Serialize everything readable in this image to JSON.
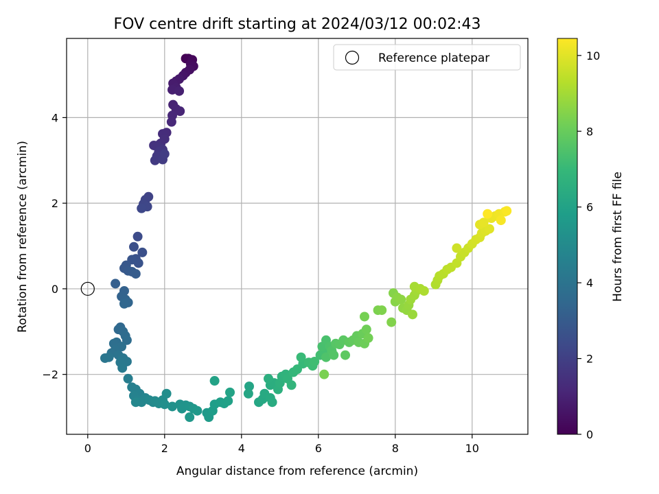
{
  "chart_data": {
    "type": "scatter",
    "title": "FOV centre drift starting at 2024/03/12 00:02:43",
    "xlabel": "Angular distance from reference (arcmin)",
    "ylabel": "Rotation from reference (arcmin)",
    "xlim": [
      -0.55,
      11.45
    ],
    "ylim": [
      -3.4,
      5.85
    ],
    "xticks": [
      0,
      2,
      4,
      6,
      8,
      10
    ],
    "yticks": [
      -2,
      0,
      2,
      4
    ],
    "grid": true,
    "legend": {
      "placement": "top-right",
      "entries": [
        "Reference platepar"
      ]
    },
    "reference_point": {
      "x": 0,
      "y": 0,
      "label": "Reference platepar"
    },
    "colorbar": {
      "label": "Hours from first FF file",
      "colormap": "viridis",
      "range": [
        0,
        10.45
      ],
      "ticks": [
        0,
        2,
        4,
        6,
        8,
        10
      ]
    },
    "points": [
      [
        2.55,
        5.38,
        0.0
      ],
      [
        2.62,
        5.38,
        0.1
      ],
      [
        2.72,
        5.35,
        0.2
      ],
      [
        2.68,
        5.25,
        0.3
      ],
      [
        2.75,
        5.2,
        0.35
      ],
      [
        2.65,
        5.12,
        0.45
      ],
      [
        2.55,
        5.05,
        0.5
      ],
      [
        2.48,
        4.98,
        0.6
      ],
      [
        2.38,
        4.9,
        0.7
      ],
      [
        2.3,
        4.85,
        0.75
      ],
      [
        2.22,
        4.8,
        0.8
      ],
      [
        2.3,
        4.7,
        0.85
      ],
      [
        2.2,
        4.65,
        0.9
      ],
      [
        2.38,
        4.62,
        0.95
      ],
      [
        2.22,
        4.3,
        1.0
      ],
      [
        2.3,
        4.2,
        1.05
      ],
      [
        2.4,
        4.15,
        1.1
      ],
      [
        2.2,
        4.05,
        1.15
      ],
      [
        2.18,
        3.9,
        1.2
      ],
      [
        2.05,
        3.65,
        1.3
      ],
      [
        1.95,
        3.62,
        1.35
      ],
      [
        2.0,
        3.5,
        1.4
      ],
      [
        1.9,
        3.4,
        1.45
      ],
      [
        1.82,
        3.35,
        1.5
      ],
      [
        1.72,
        3.35,
        1.55
      ],
      [
        1.88,
        3.3,
        1.6
      ],
      [
        1.95,
        3.25,
        1.65
      ],
      [
        1.85,
        3.2,
        1.7
      ],
      [
        1.8,
        3.1,
        1.75
      ],
      [
        1.75,
        3.0,
        1.8
      ],
      [
        1.95,
        3.02,
        1.85
      ],
      [
        2.0,
        3.15,
        1.9
      ],
      [
        1.58,
        2.15,
        2.1
      ],
      [
        1.5,
        2.08,
        2.15
      ],
      [
        1.45,
        1.98,
        2.2
      ],
      [
        1.55,
        1.92,
        2.25
      ],
      [
        1.4,
        1.88,
        2.3
      ],
      [
        1.3,
        1.22,
        2.45
      ],
      [
        1.2,
        0.98,
        2.55
      ],
      [
        1.42,
        0.85,
        2.6
      ],
      [
        1.25,
        0.7,
        2.65
      ],
      [
        1.32,
        0.6,
        2.7
      ],
      [
        1.15,
        0.68,
        2.75
      ],
      [
        1.0,
        0.55,
        2.85
      ],
      [
        0.95,
        0.48,
        2.9
      ],
      [
        1.05,
        0.42,
        2.95
      ],
      [
        1.15,
        0.4,
        3.0
      ],
      [
        1.25,
        0.35,
        3.05
      ],
      [
        0.72,
        0.12,
        3.15
      ],
      [
        0.95,
        -0.05,
        3.25
      ],
      [
        0.88,
        -0.18,
        3.3
      ],
      [
        0.98,
        -0.25,
        3.35
      ],
      [
        1.05,
        -0.32,
        3.4
      ],
      [
        0.95,
        -0.35,
        3.45
      ],
      [
        0.85,
        -0.9,
        3.5
      ],
      [
        0.8,
        -0.95,
        3.55
      ],
      [
        0.92,
        -1.0,
        3.6
      ],
      [
        0.98,
        -1.1,
        3.65
      ],
      [
        1.02,
        -1.2,
        3.7
      ],
      [
        0.75,
        -1.25,
        3.75
      ],
      [
        0.68,
        -1.28,
        3.8
      ],
      [
        0.88,
        -1.35,
        3.85
      ],
      [
        0.72,
        -1.42,
        3.9
      ],
      [
        0.62,
        -1.5,
        3.95
      ],
      [
        0.8,
        -1.55,
        4.0
      ],
      [
        0.55,
        -1.6,
        4.05
      ],
      [
        0.45,
        -1.62,
        4.1
      ],
      [
        0.92,
        -1.62,
        4.15
      ],
      [
        1.02,
        -1.7,
        4.2
      ],
      [
        0.85,
        -1.72,
        4.25
      ],
      [
        0.9,
        -1.85,
        4.3
      ],
      [
        1.05,
        -2.1,
        4.4
      ],
      [
        1.15,
        -2.3,
        4.5
      ],
      [
        1.25,
        -2.35,
        4.55
      ],
      [
        1.35,
        -2.45,
        4.6
      ],
      [
        1.2,
        -2.5,
        4.65
      ],
      [
        1.3,
        -2.6,
        4.7
      ],
      [
        1.5,
        -2.55,
        4.75
      ],
      [
        1.4,
        -2.65,
        4.8
      ],
      [
        1.25,
        -2.65,
        4.85
      ],
      [
        1.6,
        -2.6,
        4.9
      ],
      [
        1.7,
        -2.65,
        4.95
      ],
      [
        1.75,
        -2.62,
        5.0
      ],
      [
        1.85,
        -2.68,
        5.05
      ],
      [
        1.95,
        -2.6,
        5.1
      ],
      [
        2.05,
        -2.45,
        5.15
      ],
      [
        2.0,
        -2.7,
        5.2
      ],
      [
        2.2,
        -2.75,
        5.25
      ],
      [
        2.4,
        -2.7,
        5.3
      ],
      [
        2.55,
        -2.72,
        5.35
      ],
      [
        2.45,
        -2.8,
        5.4
      ],
      [
        2.65,
        -2.75,
        5.45
      ],
      [
        2.75,
        -2.8,
        5.5
      ],
      [
        2.65,
        -3.0,
        5.55
      ],
      [
        2.85,
        -2.85,
        5.6
      ],
      [
        3.1,
        -2.9,
        5.65
      ],
      [
        3.15,
        -3.0,
        5.7
      ],
      [
        3.25,
        -2.85,
        5.75
      ],
      [
        3.3,
        -2.7,
        5.8
      ],
      [
        3.45,
        -2.65,
        5.85
      ],
      [
        3.55,
        -2.68,
        5.9
      ],
      [
        3.65,
        -2.62,
        5.95
      ],
      [
        3.3,
        -2.15,
        6.0
      ],
      [
        3.7,
        -2.42,
        6.05
      ],
      [
        4.2,
        -2.28,
        6.1
      ],
      [
        4.18,
        -2.45,
        6.15
      ],
      [
        4.45,
        -2.65,
        6.2
      ],
      [
        4.55,
        -2.58,
        6.25
      ],
      [
        4.6,
        -2.45,
        6.3
      ],
      [
        4.75,
        -2.55,
        6.35
      ],
      [
        4.8,
        -2.65,
        6.4
      ],
      [
        4.75,
        -2.25,
        6.45
      ],
      [
        4.85,
        -2.2,
        6.5
      ],
      [
        4.7,
        -2.1,
        6.55
      ],
      [
        4.95,
        -2.35,
        6.6
      ],
      [
        5.0,
        -2.2,
        6.65
      ],
      [
        5.05,
        -2.05,
        6.7
      ],
      [
        5.15,
        -2.0,
        6.75
      ],
      [
        5.2,
        -2.1,
        6.8
      ],
      [
        5.3,
        -2.25,
        6.85
      ],
      [
        5.35,
        -1.95,
        6.9
      ],
      [
        5.45,
        -1.88,
        6.95
      ],
      [
        5.6,
        -1.75,
        7.0
      ],
      [
        5.55,
        -1.6,
        7.05
      ],
      [
        5.75,
        -1.72,
        7.1
      ],
      [
        5.85,
        -1.8,
        7.15
      ],
      [
        5.9,
        -1.7,
        7.2
      ],
      [
        6.05,
        -1.55,
        7.25
      ],
      [
        6.15,
        -1.48,
        7.3
      ],
      [
        6.1,
        -1.35,
        7.35
      ],
      [
        6.2,
        -1.2,
        7.4
      ],
      [
        6.3,
        -1.35,
        7.45
      ],
      [
        6.2,
        -1.6,
        7.5
      ],
      [
        6.35,
        -1.45,
        7.55
      ],
      [
        6.4,
        -1.55,
        7.6
      ],
      [
        6.45,
        -1.28,
        7.65
      ],
      [
        6.55,
        -1.3,
        7.7
      ],
      [
        6.65,
        -1.2,
        7.75
      ],
      [
        6.7,
        -1.55,
        7.8
      ],
      [
        6.8,
        -1.25,
        7.85
      ],
      [
        6.9,
        -1.2,
        7.9
      ],
      [
        7.0,
        -1.1,
        7.95
      ],
      [
        7.05,
        -1.25,
        8.0
      ],
      [
        7.15,
        -1.05,
        8.05
      ],
      [
        7.2,
        -1.28,
        8.1
      ],
      [
        7.25,
        -0.95,
        8.15
      ],
      [
        7.3,
        -1.15,
        8.2
      ],
      [
        7.2,
        -0.65,
        8.25
      ],
      [
        6.15,
        -2.0,
        8.3
      ],
      [
        7.55,
        -0.5,
        8.35
      ],
      [
        7.65,
        -0.5,
        8.4
      ],
      [
        7.9,
        -0.78,
        8.45
      ],
      [
        7.95,
        -0.1,
        8.5
      ],
      [
        8.0,
        -0.3,
        8.55
      ],
      [
        8.05,
        -0.2,
        8.6
      ],
      [
        8.15,
        -0.25,
        8.65
      ],
      [
        8.2,
        -0.45,
        8.7
      ],
      [
        8.3,
        -0.5,
        8.75
      ],
      [
        8.35,
        -0.38,
        8.8
      ],
      [
        8.45,
        -0.6,
        8.85
      ],
      [
        8.4,
        -0.25,
        8.9
      ],
      [
        8.5,
        -0.15,
        8.95
      ],
      [
        8.55,
        -0.05,
        9.0
      ],
      [
        8.5,
        0.05,
        9.05
      ],
      [
        8.65,
        0.0,
        9.1
      ],
      [
        8.75,
        -0.05,
        9.15
      ],
      [
        9.05,
        0.1,
        9.2
      ],
      [
        9.1,
        0.2,
        9.25
      ],
      [
        9.15,
        0.3,
        9.3
      ],
      [
        9.25,
        0.35,
        9.35
      ],
      [
        9.35,
        0.45,
        9.4
      ],
      [
        9.45,
        0.5,
        9.45
      ],
      [
        9.6,
        0.6,
        9.5
      ],
      [
        9.7,
        0.75,
        9.55
      ],
      [
        9.8,
        0.85,
        9.6
      ],
      [
        9.9,
        0.95,
        9.65
      ],
      [
        9.6,
        0.95,
        9.7
      ],
      [
        10.0,
        1.05,
        9.75
      ],
      [
        10.1,
        1.15,
        9.8
      ],
      [
        10.2,
        1.2,
        9.85
      ],
      [
        10.25,
        1.3,
        9.9
      ],
      [
        10.35,
        1.35,
        9.95
      ],
      [
        10.45,
        1.4,
        10.0
      ],
      [
        10.2,
        1.5,
        10.05
      ],
      [
        10.3,
        1.55,
        10.1
      ],
      [
        10.5,
        1.65,
        10.15
      ],
      [
        10.6,
        1.7,
        10.2
      ],
      [
        10.7,
        1.75,
        10.25
      ],
      [
        10.85,
        1.8,
        10.3
      ],
      [
        10.75,
        1.6,
        10.35
      ],
      [
        10.9,
        1.82,
        10.4
      ],
      [
        10.4,
        1.75,
        10.45
      ]
    ]
  }
}
